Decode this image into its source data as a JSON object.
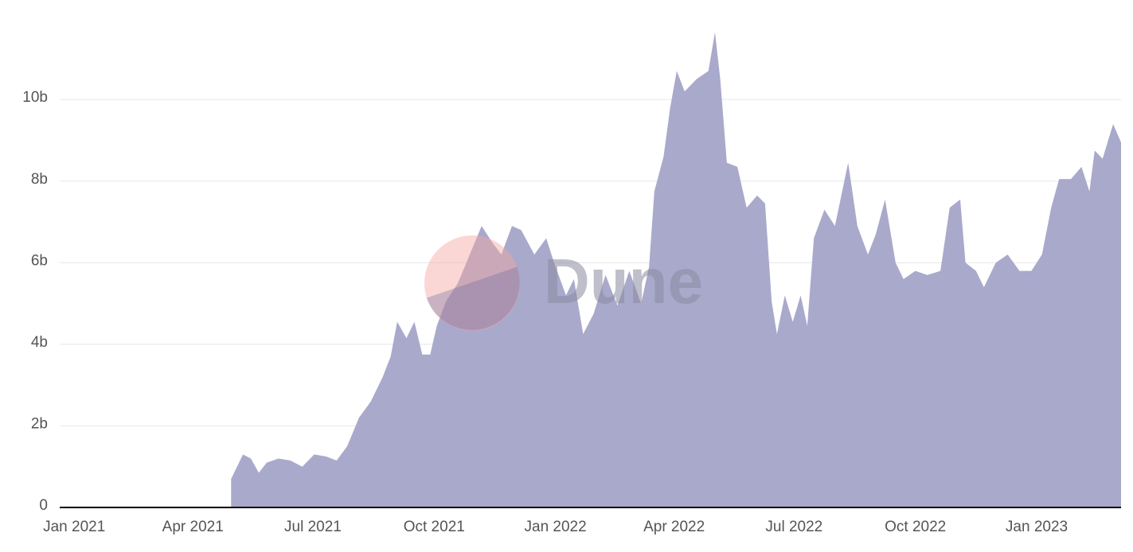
{
  "chart_data": {
    "type": "area",
    "watermark": "Dune",
    "color": "#a9a9cc",
    "grid": true,
    "x": [
      "2021-04-30",
      "2021-05-09",
      "2021-05-15",
      "2021-05-21",
      "2021-05-27",
      "2021-06-05",
      "2021-06-14",
      "2021-06-23",
      "2021-07-02",
      "2021-07-11",
      "2021-07-19",
      "2021-07-27",
      "2021-08-05",
      "2021-08-14",
      "2021-08-23",
      "2021-08-29",
      "2021-09-03",
      "2021-09-10",
      "2021-09-16",
      "2021-09-22",
      "2021-09-28",
      "2021-10-03",
      "2021-10-10",
      "2021-10-19",
      "2021-10-28",
      "2021-11-06",
      "2021-11-14",
      "2021-11-21",
      "2021-11-29",
      "2021-12-06",
      "2021-12-16",
      "2021-12-25",
      "2021-12-31",
      "2022-01-09",
      "2022-01-15",
      "2022-01-22",
      "2022-01-30",
      "2022-02-08",
      "2022-02-17",
      "2022-02-26",
      "2022-03-07",
      "2022-03-13",
      "2022-03-17",
      "2022-03-24",
      "2022-03-29",
      "2022-04-03",
      "2022-04-09",
      "2022-04-18",
      "2022-04-27",
      "2022-05-02",
      "2022-05-06",
      "2022-05-11",
      "2022-05-19",
      "2022-05-26",
      "2022-06-03",
      "2022-06-09",
      "2022-06-14",
      "2022-06-18",
      "2022-06-24",
      "2022-06-30",
      "2022-07-06",
      "2022-07-11",
      "2022-07-16",
      "2022-07-24",
      "2022-08-01",
      "2022-08-11",
      "2022-08-18",
      "2022-08-26",
      "2022-09-01",
      "2022-09-08",
      "2022-09-16",
      "2022-09-22",
      "2022-10-01",
      "2022-10-10",
      "2022-10-20",
      "2022-10-27",
      "2022-11-04",
      "2022-11-08",
      "2022-11-16",
      "2022-11-22",
      "2022-12-01",
      "2022-12-10",
      "2022-12-19",
      "2022-12-28",
      "2023-01-05",
      "2023-01-12",
      "2023-01-18",
      "2023-01-27",
      "2023-02-04",
      "2023-02-10",
      "2023-02-14",
      "2023-02-20",
      "2023-02-28",
      "2023-03-06"
    ],
    "values": [
      0.7,
      1.3,
      1.2,
      0.85,
      1.1,
      1.2,
      1.15,
      1.0,
      1.3,
      1.25,
      1.15,
      1.5,
      2.2,
      2.6,
      3.2,
      3.7,
      4.55,
      4.15,
      4.55,
      3.75,
      3.75,
      4.45,
      5.05,
      5.5,
      6.2,
      6.9,
      6.5,
      6.2,
      6.9,
      6.8,
      6.2,
      6.6,
      6.0,
      5.2,
      5.6,
      4.25,
      4.75,
      5.7,
      4.95,
      5.8,
      5.0,
      5.9,
      7.75,
      8.6,
      9.8,
      10.7,
      10.2,
      10.5,
      10.7,
      11.65,
      10.5,
      8.45,
      8.35,
      7.35,
      7.65,
      7.45,
      5.05,
      4.25,
      5.2,
      4.55,
      5.2,
      4.45,
      6.6,
      7.3,
      6.9,
      8.45,
      6.9,
      6.2,
      6.7,
      7.55,
      6.0,
      5.6,
      5.8,
      5.7,
      5.8,
      7.35,
      7.55,
      6.0,
      5.8,
      5.4,
      6.0,
      6.2,
      5.8,
      5.8,
      6.2,
      7.35,
      8.05,
      8.05,
      8.35,
      7.75,
      8.75,
      8.55,
      9.4,
      8.95
    ],
    "xlim": [
      "2020-12-21",
      "2023-03-06"
    ],
    "xticks": [
      {
        "value": "2021-01-01",
        "label": "Jan 2021"
      },
      {
        "value": "2021-04-01",
        "label": "Apr 2021"
      },
      {
        "value": "2021-07-01",
        "label": "Jul 2021"
      },
      {
        "value": "2021-10-01",
        "label": "Oct 2021"
      },
      {
        "value": "2022-01-01",
        "label": "Jan 2022"
      },
      {
        "value": "2022-04-01",
        "label": "Apr 2022"
      },
      {
        "value": "2022-07-01",
        "label": "Jul 2022"
      },
      {
        "value": "2022-10-01",
        "label": "Oct 2022"
      },
      {
        "value": "2023-01-01",
        "label": "Jan 2023"
      }
    ],
    "ylim": [
      0,
      11.7
    ],
    "yticks": [
      0,
      {
        "value": 2,
        "label": "2b"
      },
      {
        "value": 4,
        "label": "4b"
      },
      {
        "value": 6,
        "label": "6b"
      },
      {
        "value": 8,
        "label": "8b"
      },
      {
        "value": 10,
        "label": "10b"
      }
    ]
  }
}
